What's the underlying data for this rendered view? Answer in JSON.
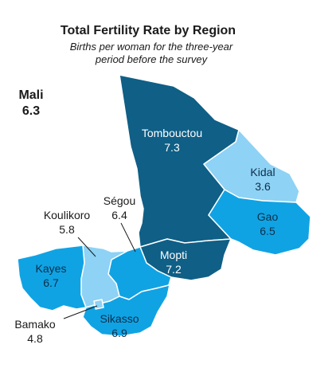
{
  "title": "Total Fertility Rate by Region",
  "subtitle_line1": "Births per woman for the three-year",
  "subtitle_line2": "period before the survey",
  "national": {
    "name": "Mali",
    "value": "6.3"
  },
  "colors": {
    "tfr_7_plus": "#0f5f86",
    "tfr_6_5_to_7": "#10a3e4",
    "tfr_6_and_below": "#8ed2f5",
    "outline": "#ffffff",
    "leader_line": "#1a1a1a"
  },
  "regions": [
    {
      "name": "Tombouctou",
      "value": "7.3",
      "color_key": "tfr_7_plus"
    },
    {
      "name": "Kidal",
      "value": "3.6",
      "color_key": "tfr_6_and_below"
    },
    {
      "name": "Gao",
      "value": "6.5",
      "color_key": "tfr_6_5_to_7"
    },
    {
      "name": "Mopti",
      "value": "7.2",
      "color_key": "tfr_7_plus"
    },
    {
      "name": "Ségou",
      "value": "6.4",
      "color_key": "tfr_6_5_to_7"
    },
    {
      "name": "Koulikoro",
      "value": "5.8",
      "color_key": "tfr_6_and_below"
    },
    {
      "name": "Kayes",
      "value": "6.7",
      "color_key": "tfr_6_5_to_7"
    },
    {
      "name": "Bamako",
      "value": "4.8",
      "color_key": "tfr_6_and_below"
    },
    {
      "name": "Sikasso",
      "value": "6.9",
      "color_key": "tfr_6_5_to_7"
    }
  ]
}
